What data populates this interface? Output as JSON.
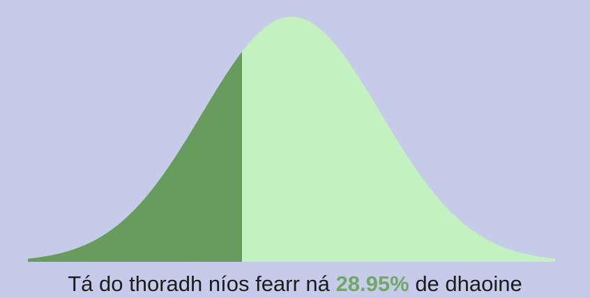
{
  "result": {
    "prefix": "Tá do thoradh níos fearr ná",
    "percentile_text": "28.95%",
    "suffix": "de dhaoine"
  },
  "colors": {
    "background": "#c6cbea",
    "curve_fill": "#c3f2c0",
    "shaded_fill": "#679c5c",
    "percent_text": "#6fa964"
  },
  "chart_data": {
    "type": "area",
    "distribution": "normal",
    "shaded_side": "left",
    "shaded_fraction": 0.2895,
    "grid": false,
    "legend": "none"
  }
}
